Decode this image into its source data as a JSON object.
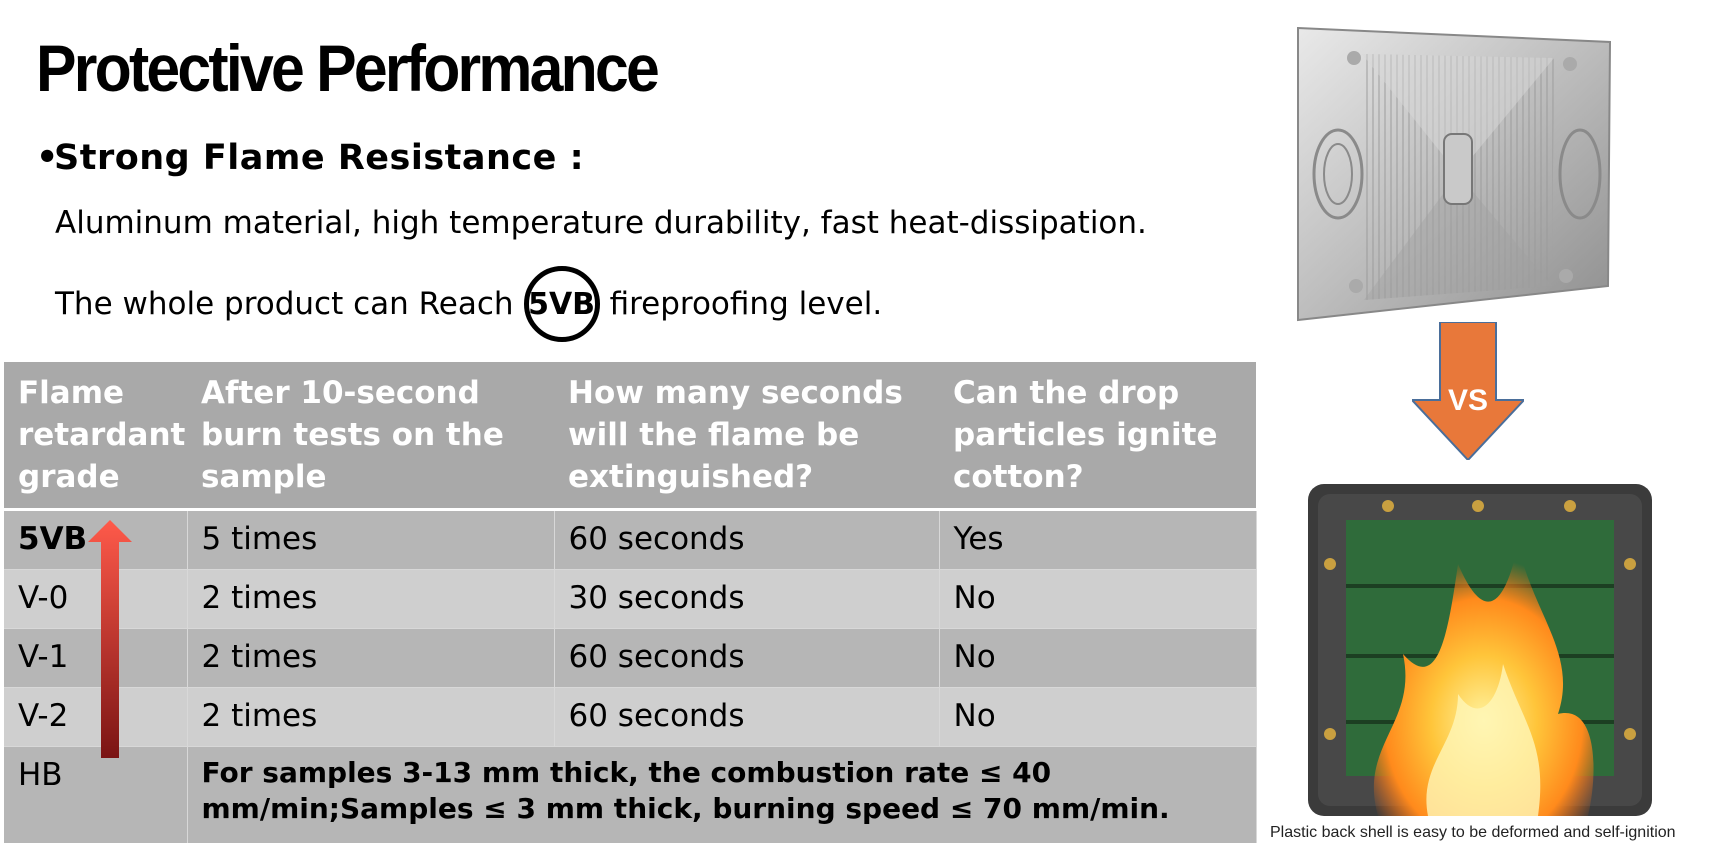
{
  "slide": {
    "title": "Protective Performance",
    "bullet": "•",
    "subtitle": "Strong Flame Resistance :",
    "line1": "Aluminum material, high temperature durability, fast heat-dissipation.",
    "line2_before": "The whole product can Reach",
    "line2_circled": "5VB",
    "line2_after": "fireproofing level."
  },
  "table": {
    "headers": [
      "Flame retardant grade",
      "After 10-second burn tests on the sample",
      "How many seconds will the flame be extinguished?",
      "Can the drop particles ignite cotton?"
    ],
    "rows": [
      {
        "grade": "5VB",
        "burns": "5 times",
        "seconds": "60 seconds",
        "ignite": "Yes"
      },
      {
        "grade": "V-0",
        "burns": "2 times",
        "seconds": "30 seconds",
        "ignite": "No"
      },
      {
        "grade": "V-1",
        "burns": "2 times",
        "seconds": "60 seconds",
        "ignite": "No"
      },
      {
        "grade": "V-2",
        "burns": "2 times",
        "seconds": "60 seconds",
        "ignite": "No"
      }
    ],
    "hb_row": {
      "grade": "HB",
      "note": "For samples 3-13 mm thick, the combustion rate ≤ 40 mm/min;Samples ≤ 3 mm thick, burning speed ≤ 70 mm/min."
    }
  },
  "comparison": {
    "vs_label": "VS",
    "caption": "Plastic back shell is easy to be deformed and self-ignition",
    "colors": {
      "vs_arrow": "#e8783a",
      "grade_arrow_top": "#ff5a4a",
      "grade_arrow_bottom": "#7a1414"
    }
  }
}
